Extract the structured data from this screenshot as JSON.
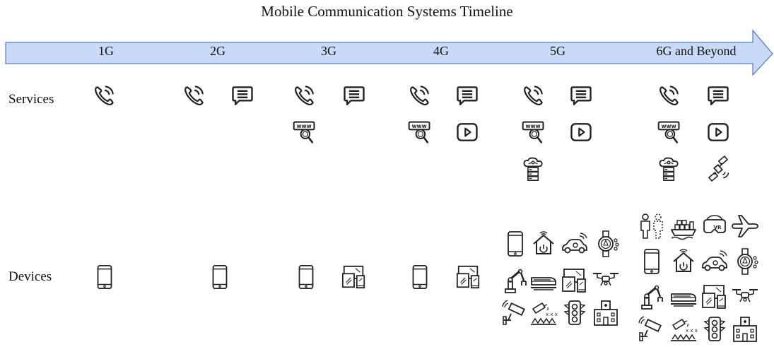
{
  "title": "Mobile Communication Systems Timeline",
  "generations": [
    "1G",
    "2G",
    "3G",
    "4G",
    "5G",
    "6G and Beyond"
  ],
  "rows": {
    "services": "Services",
    "devices": "Devices"
  },
  "colors": {
    "arrow_fill": "#c9daf8",
    "arrow_stroke": "#3b66b8",
    "icon": "#222222"
  },
  "services": [
    [
      "phone-call-icon"
    ],
    [
      "phone-call-icon",
      "message-icon"
    ],
    [
      "phone-call-icon",
      "message-icon",
      "web-search-icon"
    ],
    [
      "phone-call-icon",
      "message-icon",
      "web-search-icon",
      "video-play-icon"
    ],
    [
      "phone-call-icon",
      "message-icon",
      "web-search-icon",
      "video-play-icon",
      "cloud-server-icon"
    ],
    [
      "phone-call-icon",
      "message-icon",
      "web-search-icon",
      "video-play-icon",
      "cloud-server-icon",
      "satellite-icon"
    ]
  ],
  "devices": [
    [
      "smartphone-icon"
    ],
    [
      "smartphone-icon"
    ],
    [
      "smartphone-icon",
      "multi-device-icon"
    ],
    [
      "smartphone-icon",
      "multi-device-icon"
    ],
    [
      "smartphone-icon",
      "smart-home-icon",
      "connected-car-icon",
      "smartwatch-icon",
      "robot-arm-icon",
      "train-icon",
      "multi-device-icon",
      "drone-icon",
      "security-camera-icon",
      "smart-farming-icon",
      "traffic-light-icon",
      "hospital-icon"
    ],
    [
      "digital-twin-icon",
      "ship-icon",
      "vr-headset-icon",
      "airplane-icon",
      "smartphone-icon",
      "smart-home-icon",
      "connected-car-icon",
      "smartwatch-icon",
      "robot-arm-icon",
      "train-icon",
      "multi-device-icon",
      "drone-icon",
      "security-camera-icon",
      "smart-farming-icon",
      "traffic-light-icon",
      "hospital-icon"
    ]
  ]
}
